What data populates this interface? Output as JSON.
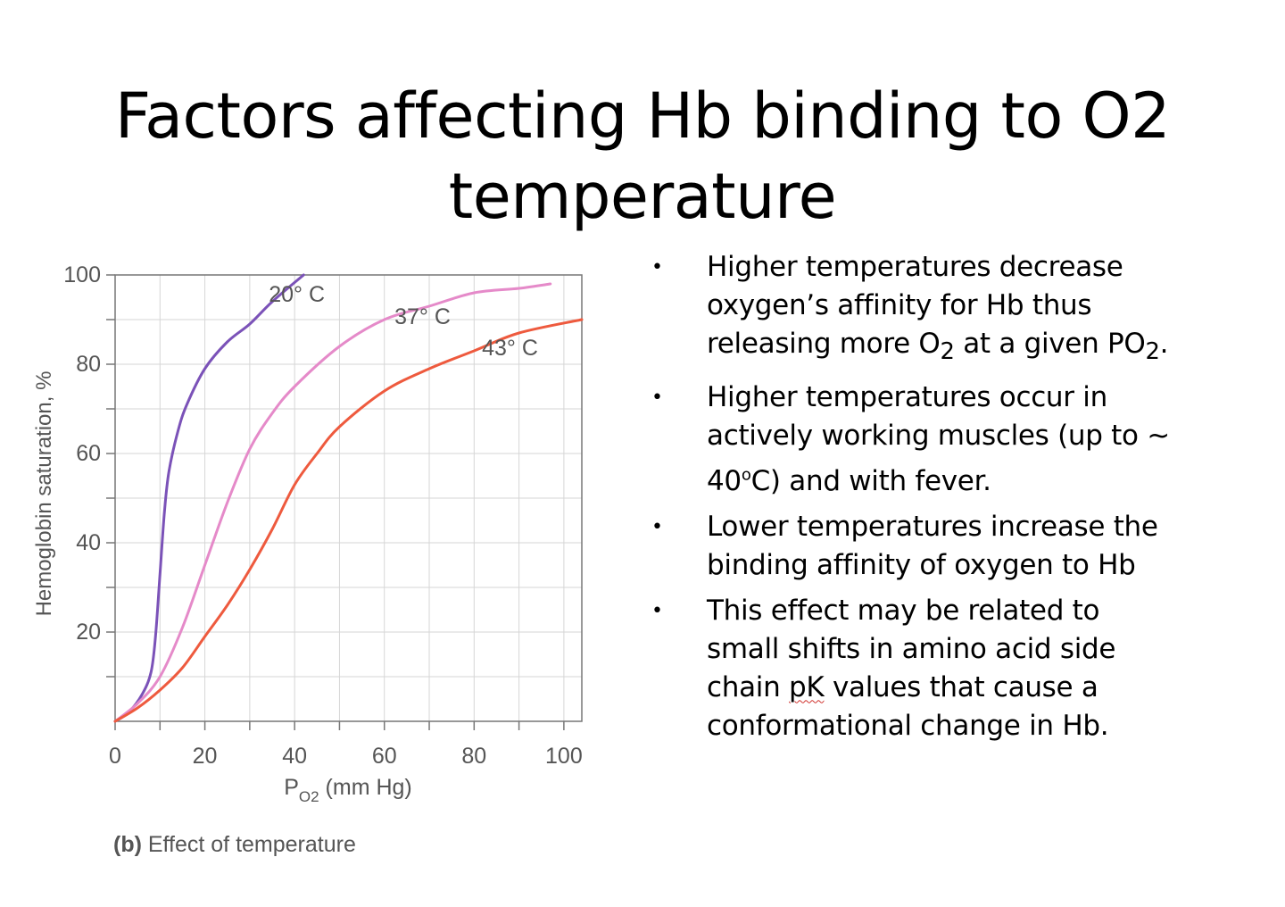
{
  "slide": {
    "title_line1": "Factors affecting Hb binding to O2",
    "title_line2": "temperature"
  },
  "chart_data": {
    "type": "line",
    "xlabel": "P",
    "xlabel_sub": "O2",
    "xlabel_unit": " (mm Hg)",
    "ylabel": "Hemoglobin saturation, %",
    "xlim": [
      0,
      104
    ],
    "ylim": [
      0,
      100
    ],
    "x_ticks": [
      0,
      20,
      40,
      60,
      80,
      100
    ],
    "y_ticks": [
      20,
      40,
      60,
      80,
      100
    ],
    "grid": true,
    "caption_bold": "(b)",
    "caption_text": " Effect of temperature",
    "series": [
      {
        "name": "20° C",
        "color": "#7b52b8",
        "points": [
          [
            0,
            0
          ],
          [
            3,
            2
          ],
          [
            6,
            6
          ],
          [
            8,
            11
          ],
          [
            9,
            19
          ],
          [
            10,
            33
          ],
          [
            11,
            47
          ],
          [
            12,
            56
          ],
          [
            14,
            65
          ],
          [
            16,
            71
          ],
          [
            20,
            79
          ],
          [
            25,
            85
          ],
          [
            30,
            89
          ],
          [
            35,
            94
          ],
          [
            42,
            100
          ]
        ]
      },
      {
        "name": "37° C",
        "color": "#e58ac9",
        "points": [
          [
            0,
            0
          ],
          [
            5,
            4
          ],
          [
            10,
            10
          ],
          [
            15,
            21
          ],
          [
            20,
            35
          ],
          [
            25,
            49
          ],
          [
            30,
            61
          ],
          [
            35,
            69
          ],
          [
            40,
            75
          ],
          [
            50,
            84
          ],
          [
            60,
            90
          ],
          [
            70,
            93
          ],
          [
            80,
            96
          ],
          [
            90,
            97
          ],
          [
            97,
            98
          ]
        ]
      },
      {
        "name": "43° C",
        "color": "#ee5a3e",
        "points": [
          [
            0,
            0
          ],
          [
            5,
            3
          ],
          [
            10,
            7
          ],
          [
            15,
            12
          ],
          [
            20,
            19
          ],
          [
            25,
            26
          ],
          [
            30,
            34
          ],
          [
            35,
            43
          ],
          [
            40,
            53
          ],
          [
            45,
            60
          ],
          [
            50,
            66
          ],
          [
            60,
            74
          ],
          [
            70,
            79
          ],
          [
            80,
            83
          ],
          [
            90,
            87
          ],
          [
            104,
            90
          ]
        ]
      }
    ],
    "series_labels": [
      {
        "text": "20° C",
        "x": 40.5,
        "y": 94
      },
      {
        "text": "37° C",
        "x": 68.5,
        "y": 89
      },
      {
        "text": "43° C",
        "x": 88,
        "y": 82
      }
    ]
  },
  "bullets": [
    {
      "dot": "•",
      "lines": [
        "Higher temperatures decrease",
        "oxygen’s affinity for Hb thus"
      ],
      "line3_pre": "releasing more O",
      "line3_sub1": "2",
      "line3_mid": " at a given PO",
      "line3_sub2": "2",
      "line3_post": "."
    },
    {
      "dot": "•",
      "lines": [
        "Higher temperatures occur in",
        "actively working muscles (up to ~"
      ],
      "line3_pre": "40",
      "line3_sup": "o",
      "line3_post": "C) and with fever."
    },
    {
      "dot": "•",
      "lines": [
        "Lower temperatures increase the",
        "binding affinity of oxygen to Hb"
      ]
    },
    {
      "dot": "•",
      "lines": [
        "This effect may be related to",
        "small shifts in amino acid side"
      ],
      "line3_pre": "chain ",
      "line3_squiggle": "pK",
      "line3_post": " values that cause a",
      "line4": "conformational change in Hb."
    }
  ]
}
